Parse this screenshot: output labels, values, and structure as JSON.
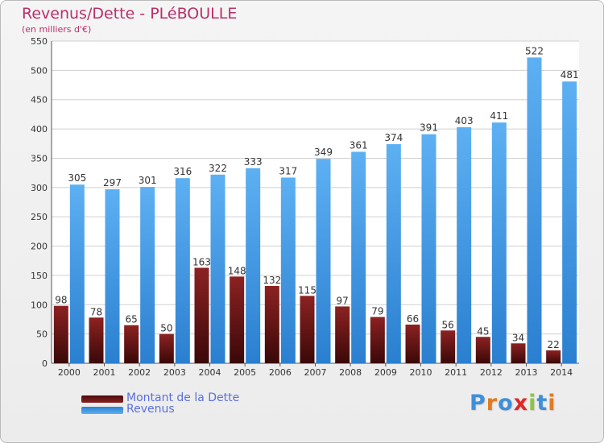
{
  "chart_data": {
    "type": "bar",
    "title": "Revenus/Dette - PLéBOULLE",
    "subtitle": "(en milliers d'€)",
    "categories": [
      "2000",
      "2001",
      "2002",
      "2003",
      "2004",
      "2005",
      "2006",
      "2007",
      "2008",
      "2009",
      "2010",
      "2011",
      "2012",
      "2013",
      "2014"
    ],
    "series": [
      {
        "name": "Montant de la Dette",
        "color": "#7a1818",
        "values": [
          98,
          78,
          65,
          50,
          163,
          148,
          132,
          115,
          97,
          79,
          66,
          56,
          45,
          34,
          22
        ]
      },
      {
        "name": "Revenus",
        "color": "#3b93de",
        "values": [
          305,
          297,
          301,
          316,
          322,
          333,
          317,
          349,
          361,
          374,
          391,
          403,
          411,
          522,
          481
        ]
      }
    ],
    "y_ticks": [
      0,
      50,
      100,
      150,
      200,
      250,
      300,
      350,
      400,
      450,
      500,
      550
    ],
    "ylim": [
      0,
      550
    ],
    "grid": true,
    "legend_position": "bottom-left"
  },
  "logo": {
    "letters": [
      {
        "ch": "P",
        "color": "#3f8fd8"
      },
      {
        "ch": "r",
        "color": "#e07b22"
      },
      {
        "ch": "o",
        "color": "#3f8fd8"
      },
      {
        "ch": "x",
        "color": "#e02828"
      },
      {
        "ch": "i",
        "color": "#8cc63f"
      },
      {
        "ch": "t",
        "color": "#3f8fd8"
      },
      {
        "ch": "i",
        "color": "#e07b22"
      }
    ]
  }
}
